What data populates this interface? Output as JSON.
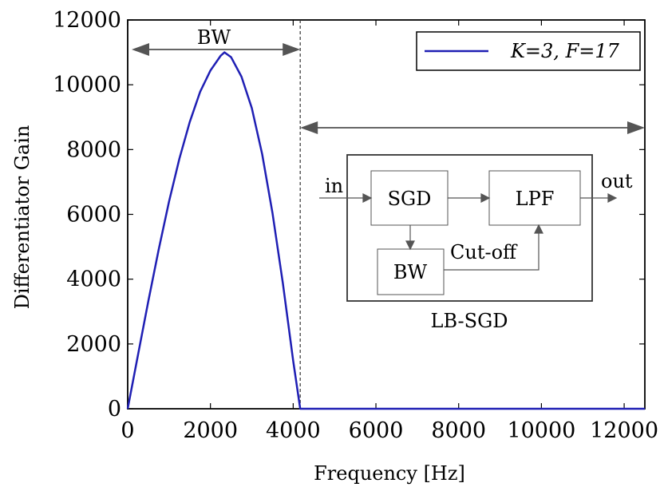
{
  "chart_data": {
    "type": "line",
    "xlabel": "Frequency [Hz]",
    "ylabel": "Differentiator Gain",
    "xlim": [
      0,
      12500
    ],
    "ylim": [
      0,
      12000
    ],
    "x_ticks": [
      "0",
      "2000",
      "4000",
      "6000",
      "8000",
      "10000",
      "12000"
    ],
    "y_ticks": [
      "0",
      "2000",
      "4000",
      "6000",
      "8000",
      "10000",
      "12000"
    ],
    "grid": false,
    "legend_position": "top-right",
    "series": [
      {
        "name": "K=3, F=17",
        "color": "#1f1fb4",
        "x": [
          0,
          250,
          500,
          750,
          1000,
          1250,
          1500,
          1750,
          2000,
          2250,
          2340,
          2500,
          2750,
          3000,
          3250,
          3500,
          3750,
          4000,
          4170,
          4500,
          6000,
          8000,
          10000,
          12000,
          12500
        ],
        "y": [
          0,
          1670,
          3330,
          4920,
          6400,
          7720,
          8850,
          9780,
          10440,
          10900,
          11000,
          10850,
          10250,
          9280,
          7860,
          6040,
          3880,
          1480,
          0,
          0,
          0,
          0,
          0,
          0,
          0
        ]
      }
    ],
    "annotations": {
      "bandwidth_label": "BW",
      "bandwidth_range_hz": [
        0,
        4170
      ],
      "cutoff_line_hz": 4170,
      "stopband_range_hz": [
        4170,
        12500
      ]
    }
  },
  "inset_diagram": {
    "input_label": "in",
    "output_label": "out",
    "sgd_label": "SGD",
    "lpf_label": "LPF",
    "bw_label": "BW",
    "cutoff_label": "Cut-off",
    "caption": "LB-SGD"
  }
}
